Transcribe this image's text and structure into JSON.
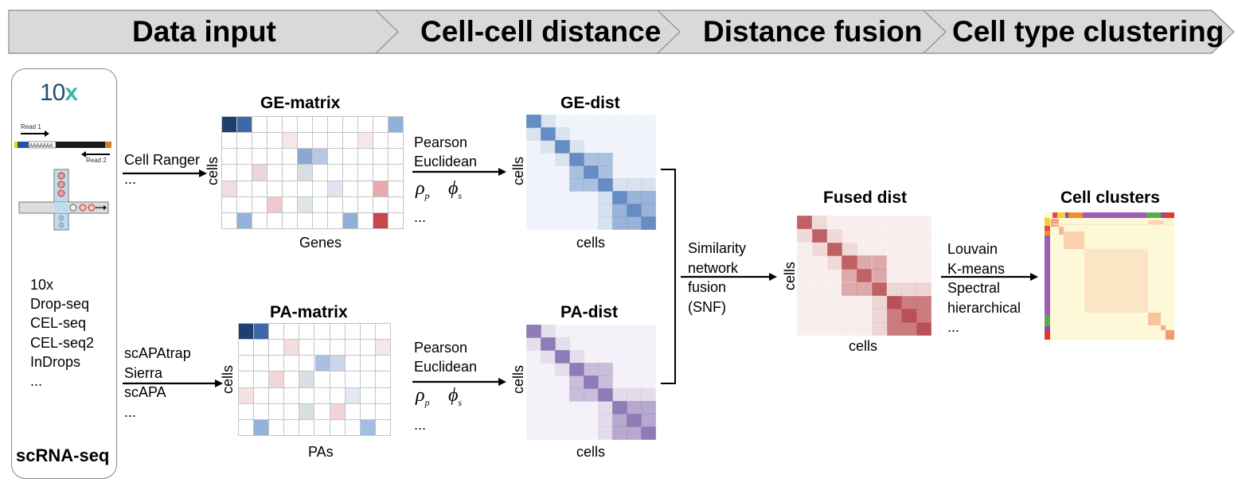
{
  "stages": [
    "Data input",
    "Cell-cell distance",
    "Distance fusion",
    "Cell type clustering"
  ],
  "panel": {
    "logo": "10",
    "logo_accent": "x",
    "read1": "Read 1",
    "read2": "Read 2",
    "protocols": [
      "10x",
      "Drop-seq",
      "CEL-seq",
      "CEL-seq2",
      "InDrops",
      "..."
    ],
    "caption": "scRNA-seq"
  },
  "ge_tools": [
    "Cell Ranger",
    "..."
  ],
  "pa_tools": [
    "scAPAtrap",
    "Sierra",
    "scAPA",
    "..."
  ],
  "ge_matrix": {
    "title": "GE-matrix",
    "ylabel": "cells",
    "xlabel": "Genes"
  },
  "pa_matrix": {
    "title": "PA-matrix",
    "ylabel": "cells",
    "xlabel": "PAs"
  },
  "dist_methods": {
    "line1": "Pearson",
    "line2": "Euclidean",
    "rho_sub": "p",
    "phi_sub": "s",
    "more": "..."
  },
  "ge_dist": {
    "title": "GE-dist",
    "ylabel": "cells",
    "xlabel": "cells"
  },
  "pa_dist": {
    "title": "PA-dist",
    "ylabel": "cells",
    "xlabel": "cells"
  },
  "fusion_method": [
    "Similarity",
    "network",
    "fusion",
    "(SNF)"
  ],
  "fused": {
    "title": "Fused dist",
    "ylabel": "cells",
    "xlabel": "cells"
  },
  "cluster_methods": [
    "Louvain",
    "K-means",
    "Spectral",
    "hierarchical",
    "..."
  ],
  "clusters": {
    "title": "Cell clusters"
  },
  "colors": {
    "stage_fill": "#d9d9d9",
    "stage_border": "#8c8c8c",
    "ge_blue": "#4a78b8",
    "pa_purple": "#7b64a8",
    "fused_red": "#b5474a",
    "logo_teal": "#1f4f7a",
    "logo_x": "#3bb8a5"
  }
}
